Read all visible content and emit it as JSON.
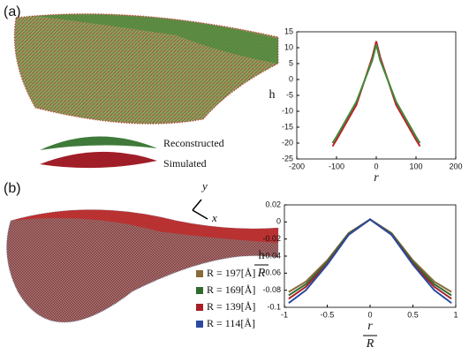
{
  "panels": {
    "a": "(a)",
    "b": "(b)"
  },
  "image_labels": {
    "reconstructed": "Reconstructed",
    "simulated": "Simulated",
    "axis_y": "y",
    "axis_x": "x"
  },
  "chart_data": [
    {
      "type": "line",
      "ylabel": "h",
      "xlabel": "r",
      "xlim": [
        -200,
        200
      ],
      "xticks": [
        -200,
        -100,
        0,
        100,
        200
      ],
      "ylim": [
        -25,
        15
      ],
      "yticks": [
        -25,
        -20,
        -15,
        -10,
        -5,
        0,
        5,
        10,
        15
      ],
      "x": [
        -110,
        -100,
        -50,
        -10,
        0,
        10,
        50,
        100,
        110
      ],
      "series": [
        {
          "color": "#c0202a",
          "values": [
            -21,
            -19,
            -8,
            7,
            12,
            7,
            -8,
            -19,
            -21
          ]
        },
        {
          "color": "#3f8a3a",
          "values": [
            -20,
            -18,
            -7,
            6,
            11,
            6,
            -7,
            -18,
            -20
          ]
        }
      ]
    },
    {
      "type": "line",
      "ylabel_numerator": "h",
      "ylabel_denominator": "R",
      "xlabel_numerator": "r",
      "xlabel_denominator": "R",
      "xlim": [
        -1,
        1
      ],
      "xticks": [
        -1,
        -0.5,
        0,
        0.5,
        1
      ],
      "ylim": [
        -0.1,
        0.02
      ],
      "yticks": [
        -0.1,
        -0.08,
        -0.06,
        -0.04,
        -0.02,
        0,
        0.02
      ],
      "x": [
        -0.95,
        -0.75,
        -0.5,
        -0.25,
        0,
        0.25,
        0.5,
        0.75,
        0.95
      ],
      "series": [
        {
          "name": "R = 197[Å]",
          "color": "#8a6a3a",
          "values": [
            -0.082,
            -0.07,
            -0.045,
            -0.013,
            0.003,
            -0.013,
            -0.045,
            -0.07,
            -0.082
          ]
        },
        {
          "name": "R = 169[Å]",
          "color": "#2f6b2f",
          "values": [
            -0.086,
            -0.073,
            -0.047,
            -0.014,
            0.003,
            -0.014,
            -0.047,
            -0.073,
            -0.086
          ]
        },
        {
          "name": "R = 139[Å]",
          "color": "#a82025",
          "values": [
            -0.09,
            -0.076,
            -0.049,
            -0.015,
            0.003,
            -0.015,
            -0.049,
            -0.076,
            -0.09
          ]
        },
        {
          "name": "R = 114[Å]",
          "color": "#2a4aa0",
          "values": [
            -0.095,
            -0.08,
            -0.05,
            -0.015,
            0.003,
            -0.015,
            -0.05,
            -0.08,
            -0.095
          ]
        }
      ]
    }
  ]
}
